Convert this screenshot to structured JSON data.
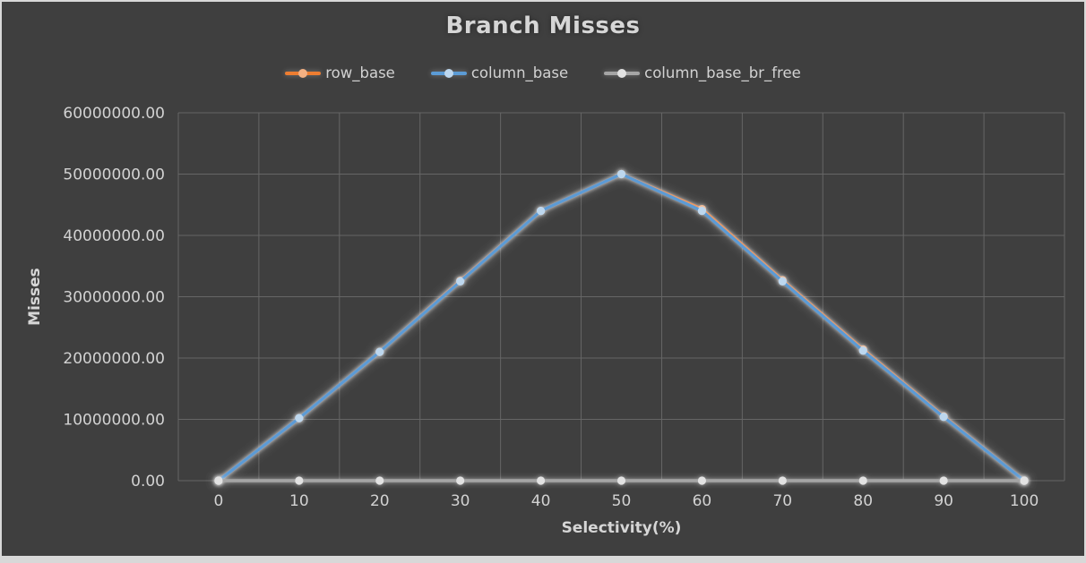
{
  "window": {
    "frame_background": "#d8d8d8",
    "panel_background": "#3F3F3F"
  },
  "chart_data": {
    "type": "line",
    "title": "Branch Misses",
    "xlabel": "Selectivity(%)",
    "ylabel": "Misses",
    "categories": [
      "0",
      "10",
      "20",
      "30",
      "40",
      "50",
      "60",
      "70",
      "80",
      "90",
      "100"
    ],
    "y_tick_labels": [
      "0.00",
      "10000000.00",
      "20000000.00",
      "30000000.00",
      "40000000.00",
      "50000000.00",
      "60000000.00"
    ],
    "y_tick_values": [
      0,
      10000000,
      20000000,
      30000000,
      40000000,
      50000000,
      60000000
    ],
    "ylim": [
      0,
      60000000
    ],
    "grid": true,
    "legend_position": "top",
    "colors": {
      "gridline": "#666666",
      "axis_line": "#ABABAB",
      "tick_text": "#D2D2D2",
      "axis_title_text": "#D6D6D6"
    },
    "series": [
      {
        "name": "row_base",
        "color": "#ED7D31",
        "marker_color": "#F4B183",
        "values": [
          0,
          10200000,
          21000000,
          32600000,
          44000000,
          50000000,
          44300000,
          32700000,
          21400000,
          10500000,
          0
        ]
      },
      {
        "name": "column_base",
        "color": "#5B9BD5",
        "marker_color": "#BDD7EE",
        "values": [
          0,
          10200000,
          21000000,
          32500000,
          44000000,
          50000000,
          44000000,
          32500000,
          21200000,
          10400000,
          0
        ]
      },
      {
        "name": "column_base_br_free",
        "color": "#A5A5A5",
        "marker_color": "#E2E2E2",
        "values": [
          0,
          0,
          0,
          0,
          0,
          0,
          0,
          0,
          0,
          0,
          0
        ]
      }
    ]
  }
}
